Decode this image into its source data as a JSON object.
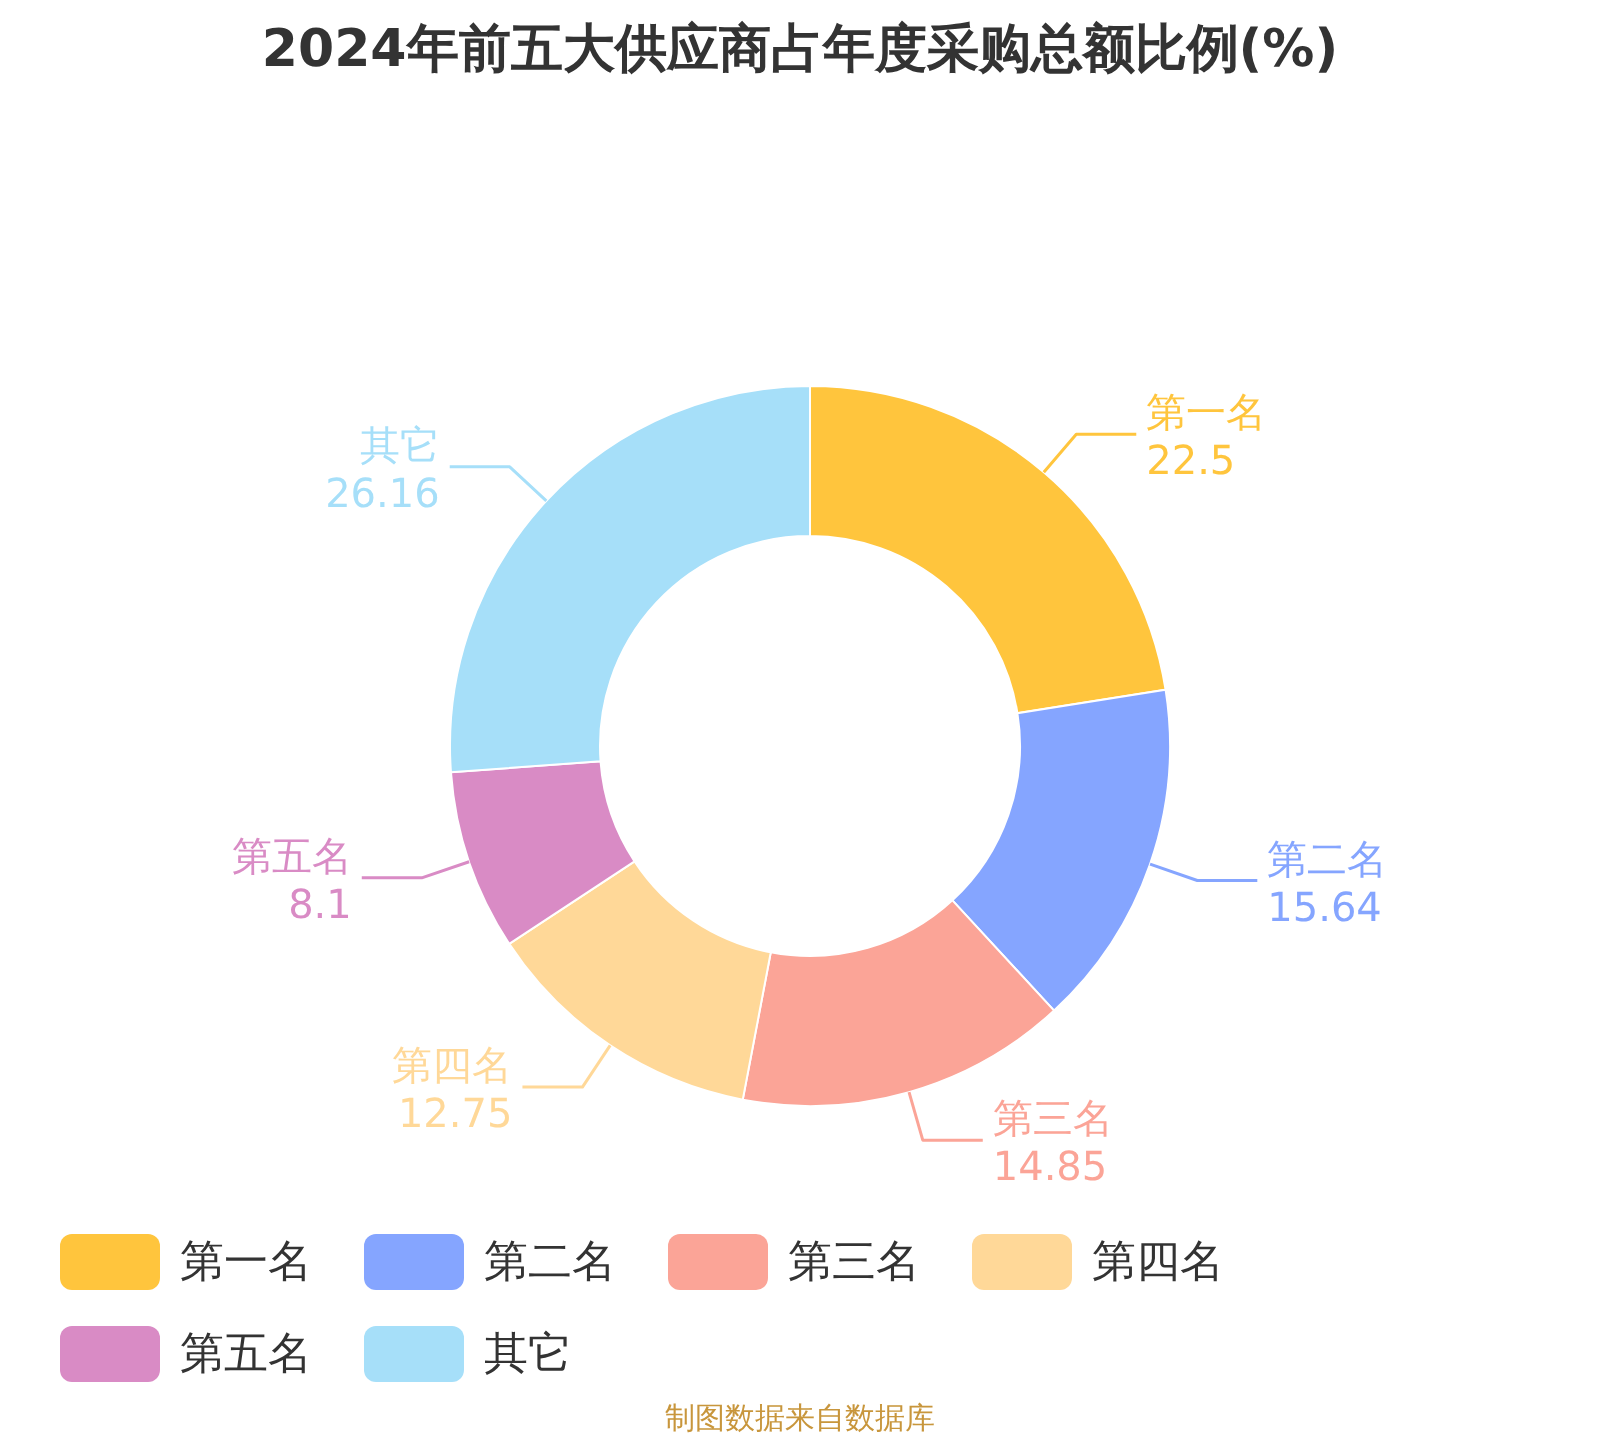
{
  "chart_data": {
    "type": "donut",
    "title": "2024年前五大供应商占年度采购总额比例(%)",
    "categories": [
      "第一名",
      "第二名",
      "第三名",
      "第四名",
      "第五名",
      "其它"
    ],
    "values": [
      22.5,
      15.64,
      14.85,
      12.75,
      8.1,
      26.16
    ],
    "colors": [
      "#ffc53d",
      "#85a5ff",
      "#fba497",
      "#ffd898",
      "#d98bc5",
      "#a6dff9"
    ],
    "data_labels": true,
    "legend": "bottom",
    "annotations": [
      "制图数据来自数据库"
    ]
  }
}
